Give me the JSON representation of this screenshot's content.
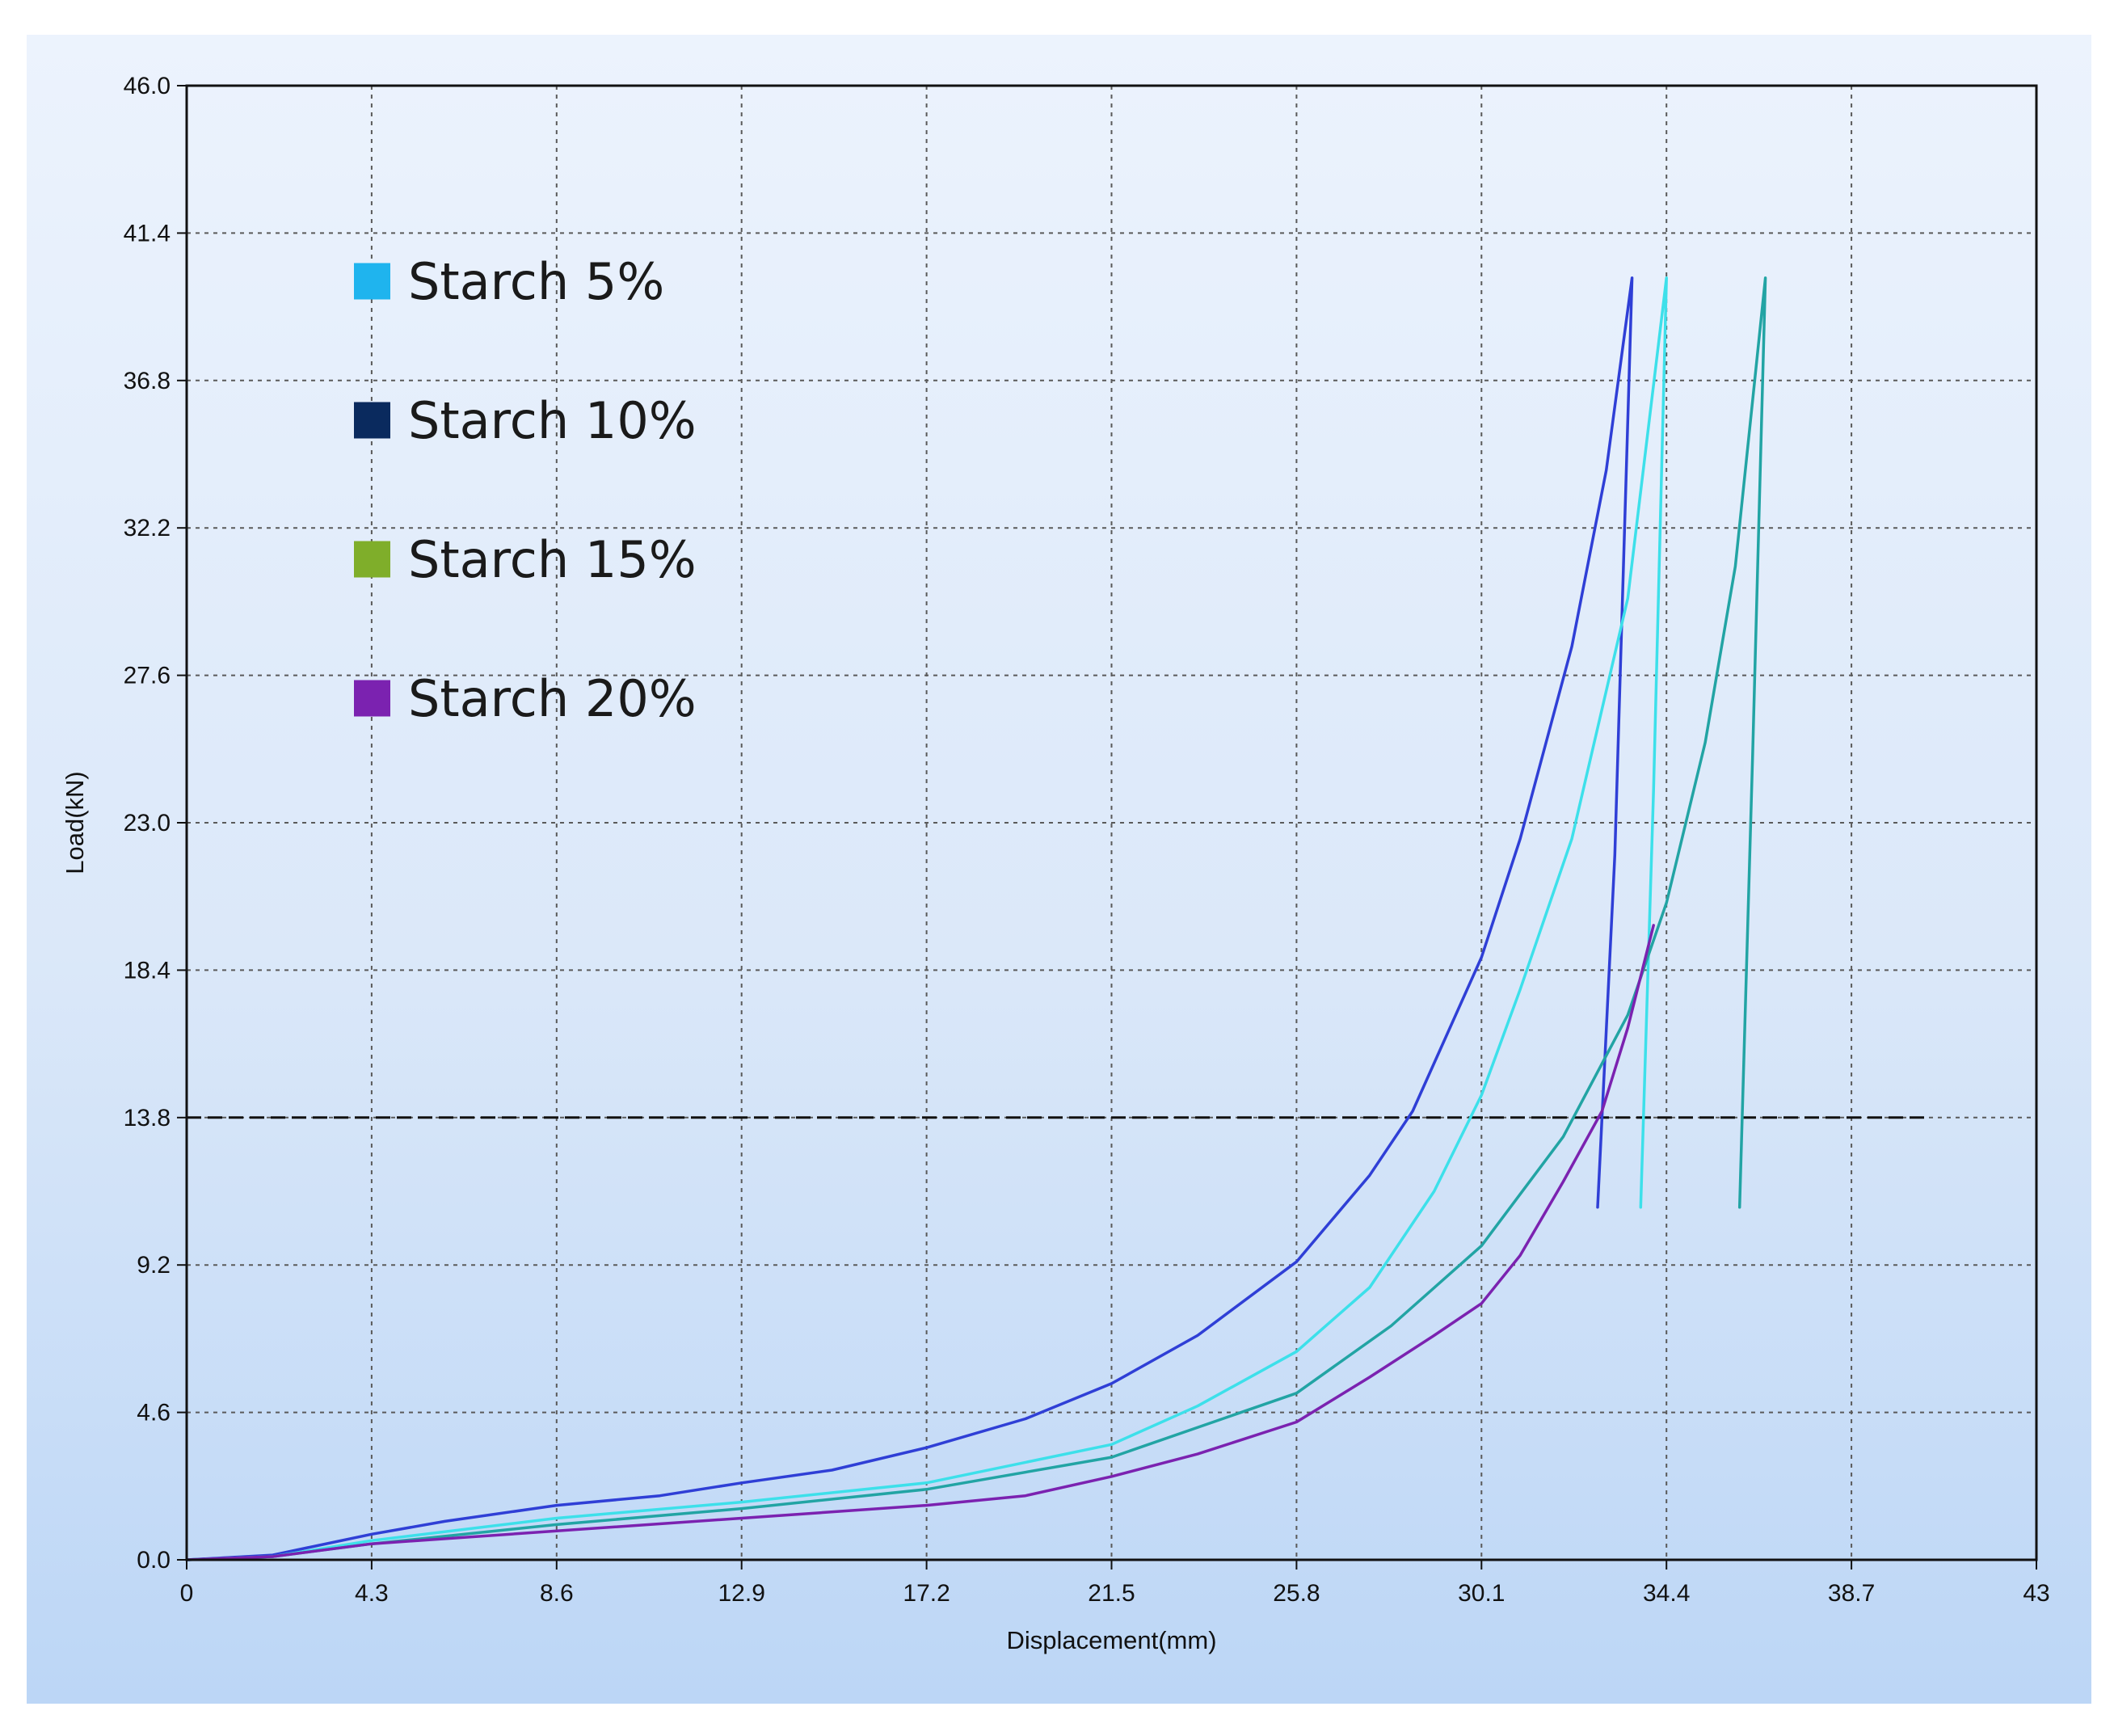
{
  "chart_data": {
    "type": "line",
    "title": "",
    "xlabel": "Displacement(mm)",
    "ylabel": "Load(kN)",
    "xlim": [
      0,
      43
    ],
    "ylim": [
      0,
      46
    ],
    "x_ticks": [
      "0",
      "4.3",
      "8.6",
      "12.9",
      "17.2",
      "21.5",
      "25.8",
      "30.1",
      "34.4",
      "38.7",
      "43"
    ],
    "y_ticks": [
      "0.0",
      "4.6",
      "9.2",
      "13.8",
      "18.4",
      "23.0",
      "27.6",
      "32.2",
      "36.8",
      "41.4",
      "46.0"
    ],
    "grid": true,
    "legend_position": "top-left",
    "legend": [
      {
        "name": "Starch 5%",
        "color": "#1fb4ee"
      },
      {
        "name": "Starch 10%",
        "color": "#0a2a5e"
      },
      {
        "name": "Starch 15%",
        "color": "#7fae2a"
      },
      {
        "name": "Starch 20%",
        "color": "#7b22b0"
      }
    ],
    "reference_line": {
      "y": 13.8,
      "style": "dashed",
      "x_end": 40.5,
      "color": "#111111"
    },
    "series": [
      {
        "color": "#2f3fd6",
        "points": [
          [
            0,
            0
          ],
          [
            2,
            0.15
          ],
          [
            4.3,
            0.8
          ],
          [
            6,
            1.2
          ],
          [
            8.6,
            1.7
          ],
          [
            11,
            2.0
          ],
          [
            12.9,
            2.4
          ],
          [
            15,
            2.8
          ],
          [
            17.2,
            3.5
          ],
          [
            19.5,
            4.4
          ],
          [
            21.5,
            5.5
          ],
          [
            23.5,
            7.0
          ],
          [
            25.8,
            9.3
          ],
          [
            27.5,
            12.0
          ],
          [
            28.5,
            14.0
          ],
          [
            30.1,
            18.8
          ],
          [
            31,
            22.5
          ],
          [
            32.2,
            28.5
          ],
          [
            33,
            34.0
          ],
          [
            33.6,
            40.0
          ],
          [
            33.2,
            22.0
          ],
          [
            32.8,
            11.0
          ]
        ]
      },
      {
        "color": "#3de0ea",
        "points": [
          [
            0,
            0
          ],
          [
            2,
            0.1
          ],
          [
            4.3,
            0.6
          ],
          [
            8.6,
            1.3
          ],
          [
            12.9,
            1.8
          ],
          [
            17.2,
            2.4
          ],
          [
            21.5,
            3.6
          ],
          [
            23.5,
            4.8
          ],
          [
            25.8,
            6.5
          ],
          [
            27.5,
            8.5
          ],
          [
            29,
            11.5
          ],
          [
            30.1,
            14.5
          ],
          [
            31,
            17.8
          ],
          [
            32.2,
            22.5
          ],
          [
            33.5,
            30.0
          ],
          [
            34.4,
            40.0
          ],
          [
            34.1,
            24.0
          ],
          [
            33.8,
            11.0
          ]
        ]
      },
      {
        "color": "#22a4a4",
        "points": [
          [
            0,
            0
          ],
          [
            2,
            0.1
          ],
          [
            4.3,
            0.5
          ],
          [
            8.6,
            1.1
          ],
          [
            12.9,
            1.6
          ],
          [
            17.2,
            2.2
          ],
          [
            21.5,
            3.2
          ],
          [
            25.8,
            5.2
          ],
          [
            28,
            7.3
          ],
          [
            30.1,
            9.8
          ],
          [
            32,
            13.2
          ],
          [
            33.5,
            17.0
          ],
          [
            34.4,
            20.5
          ],
          [
            35.3,
            25.5
          ],
          [
            36,
            31.0
          ],
          [
            36.7,
            40.0
          ],
          [
            36.4,
            25.0
          ],
          [
            36.1,
            11.0
          ]
        ]
      },
      {
        "color": "#7b22b0",
        "points": [
          [
            0,
            0
          ],
          [
            2,
            0.1
          ],
          [
            4.3,
            0.5
          ],
          [
            8.6,
            0.9
          ],
          [
            12.9,
            1.3
          ],
          [
            17.2,
            1.7
          ],
          [
            19.5,
            2.0
          ],
          [
            21.5,
            2.6
          ],
          [
            23.5,
            3.3
          ],
          [
            25.8,
            4.3
          ],
          [
            27.5,
            5.7
          ],
          [
            29,
            7.0
          ],
          [
            30.1,
            8.0
          ],
          [
            31,
            9.5
          ],
          [
            32,
            11.8
          ],
          [
            32.9,
            14.0
          ],
          [
            33.5,
            16.6
          ],
          [
            34.1,
            19.8
          ]
        ]
      }
    ]
  }
}
